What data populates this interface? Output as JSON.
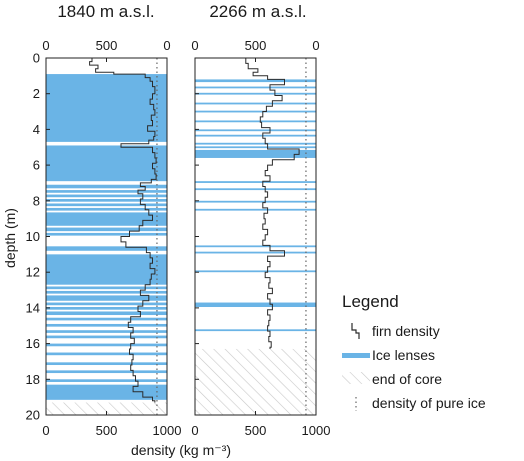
{
  "chart_data": [
    {
      "type": "line",
      "title": "1840 m a.s.l.",
      "xlabel": "density (kg m⁻³)",
      "ylabel": "depth (m)",
      "xlim": [
        0,
        1000
      ],
      "ylim": [
        20,
        0
      ],
      "xticks": [
        0,
        500,
        1000
      ],
      "xticks_top": [
        0,
        500,
        0
      ],
      "yticks": [
        0,
        2,
        4,
        6,
        8,
        10,
        12,
        14,
        16,
        18,
        20
      ],
      "pure_ice_density": 917,
      "core_depth": 19.3,
      "ice_lens_bands": [
        [
          0.9,
          4.7
        ],
        [
          4.9,
          6.9
        ],
        [
          7.1,
          7.3
        ],
        [
          7.4,
          7.55
        ],
        [
          7.65,
          7.8
        ],
        [
          7.9,
          8.05
        ],
        [
          8.15,
          8.3
        ],
        [
          8.4,
          8.55
        ],
        [
          8.65,
          9.4
        ],
        [
          9.5,
          9.7
        ],
        [
          9.8,
          9.95
        ],
        [
          10.55,
          10.8
        ],
        [
          11.0,
          12.7
        ],
        [
          12.8,
          12.95
        ],
        [
          13.05,
          13.2
        ],
        [
          13.3,
          13.6
        ],
        [
          13.7,
          13.85
        ],
        [
          13.95,
          14.1
        ],
        [
          14.2,
          14.4
        ],
        [
          14.55,
          14.7
        ],
        [
          14.9,
          15.05
        ],
        [
          15.25,
          15.4
        ],
        [
          15.55,
          15.7
        ],
        [
          16.0,
          16.15
        ],
        [
          16.5,
          16.65
        ],
        [
          17.05,
          17.2
        ],
        [
          17.5,
          17.65
        ],
        [
          18.0,
          18.15
        ],
        [
          18.3,
          19.15
        ]
      ],
      "series": [
        {
          "depth": [
            0,
            0.2,
            0.4,
            0.6,
            0.8,
            0.9,
            1.1,
            1.3,
            1.6,
            2.0,
            2.3,
            2.6,
            2.9,
            3.2,
            3.5,
            3.8,
            4.1,
            4.4,
            4.6,
            4.8,
            5.0,
            5.3,
            5.6,
            5.9,
            6.2,
            6.5,
            6.8,
            7.0,
            7.2,
            7.4,
            7.6,
            7.9,
            8.2,
            8.5,
            8.8,
            9.1,
            9.4,
            9.7,
            10.0,
            10.3,
            10.6,
            10.9,
            11.2,
            11.5,
            11.8,
            12.1,
            12.4,
            12.7,
            13.0,
            13.3,
            13.6,
            13.9,
            14.2,
            14.5,
            14.8,
            15.1,
            15.4,
            15.7,
            16.0,
            16.3,
            16.6,
            16.9,
            17.2,
            17.5,
            17.8,
            18.1,
            18.4,
            18.7,
            19.0,
            19.2
          ],
          "density": [
            380,
            360,
            430,
            410,
            560,
            820,
            860,
            880,
            900,
            880,
            860,
            890,
            900,
            870,
            880,
            840,
            900,
            890,
            850,
            620,
            880,
            900,
            910,
            880,
            900,
            910,
            870,
            780,
            820,
            760,
            800,
            780,
            820,
            850,
            880,
            800,
            770,
            690,
            620,
            660,
            830,
            860,
            880,
            860,
            900,
            870,
            860,
            820,
            780,
            850,
            800,
            760,
            780,
            700,
            680,
            720,
            700,
            730,
            700,
            690,
            720,
            710,
            700,
            720,
            740,
            760,
            720,
            800,
            880,
            900
          ]
        }
      ]
    },
    {
      "type": "line",
      "title": "2266 m a.s.l.",
      "xlim": [
        0,
        1000
      ],
      "ylim": [
        20,
        0
      ],
      "xticks": [
        0,
        500,
        1000
      ],
      "xticks_top": [
        0,
        500,
        0
      ],
      "pure_ice_density": 917,
      "core_depth": 16.3,
      "ice_lens_bands": [
        [
          1.2,
          1.35
        ],
        [
          1.6,
          1.7
        ],
        [
          1.95,
          2.05
        ],
        [
          2.5,
          2.6
        ],
        [
          2.95,
          3.05
        ],
        [
          3.5,
          3.6
        ],
        [
          4.0,
          4.1
        ],
        [
          4.3,
          4.4
        ],
        [
          4.75,
          4.85
        ],
        [
          4.95,
          5.05
        ],
        [
          5.15,
          5.6
        ],
        [
          6.9,
          7.0
        ],
        [
          7.3,
          7.4
        ],
        [
          8.0,
          8.1
        ],
        [
          8.45,
          8.55
        ],
        [
          10.5,
          10.6
        ],
        [
          10.85,
          10.95
        ],
        [
          11.9,
          12.0
        ],
        [
          13.7,
          13.95
        ],
        [
          15.2,
          15.3
        ]
      ],
      "series": [
        {
          "depth": [
            0,
            0.3,
            0.6,
            0.8,
            1.0,
            1.2,
            1.5,
            1.8,
            2.1,
            2.4,
            2.7,
            3.0,
            3.3,
            3.6,
            3.9,
            4.2,
            4.5,
            4.8,
            5.1,
            5.4,
            5.7,
            6.0,
            6.3,
            6.6,
            6.9,
            7.2,
            7.5,
            7.8,
            8.1,
            8.4,
            8.7,
            9.0,
            9.3,
            9.6,
            9.9,
            10.2,
            10.5,
            10.8,
            11.1,
            11.4,
            11.7,
            12.0,
            12.3,
            12.6,
            12.9,
            13.2,
            13.5,
            13.8,
            14.1,
            14.4,
            14.7,
            15.0,
            15.3,
            15.6,
            15.9,
            16.2
          ],
          "density": [
            420,
            440,
            520,
            480,
            600,
            740,
            620,
            660,
            720,
            640,
            590,
            560,
            540,
            550,
            620,
            560,
            580,
            600,
            860,
            820,
            640,
            600,
            580,
            620,
            560,
            580,
            600,
            580,
            560,
            600,
            570,
            580,
            560,
            600,
            580,
            560,
            620,
            740,
            600,
            620,
            600,
            580,
            620,
            610,
            640,
            600,
            620,
            640,
            600,
            620,
            610,
            600,
            620,
            610,
            630,
            620
          ]
        }
      ]
    }
  ],
  "legend": {
    "title": "Legend",
    "items": [
      {
        "label": "firn density",
        "swatch": "line-icon"
      },
      {
        "label": "Ice lenses",
        "swatch": "band-icon"
      },
      {
        "label": "end of core",
        "swatch": "hatch-icon"
      },
      {
        "label": "density of pure ice",
        "swatch": "dotted-line-icon"
      }
    ]
  },
  "colors": {
    "ice_lens": "#6ab4e6",
    "ice_lens_dark": "#4c9fd6",
    "firn_line": "#2b2b2b",
    "pure_ice_line": "#666666",
    "hatch": "#c8c8c8"
  }
}
